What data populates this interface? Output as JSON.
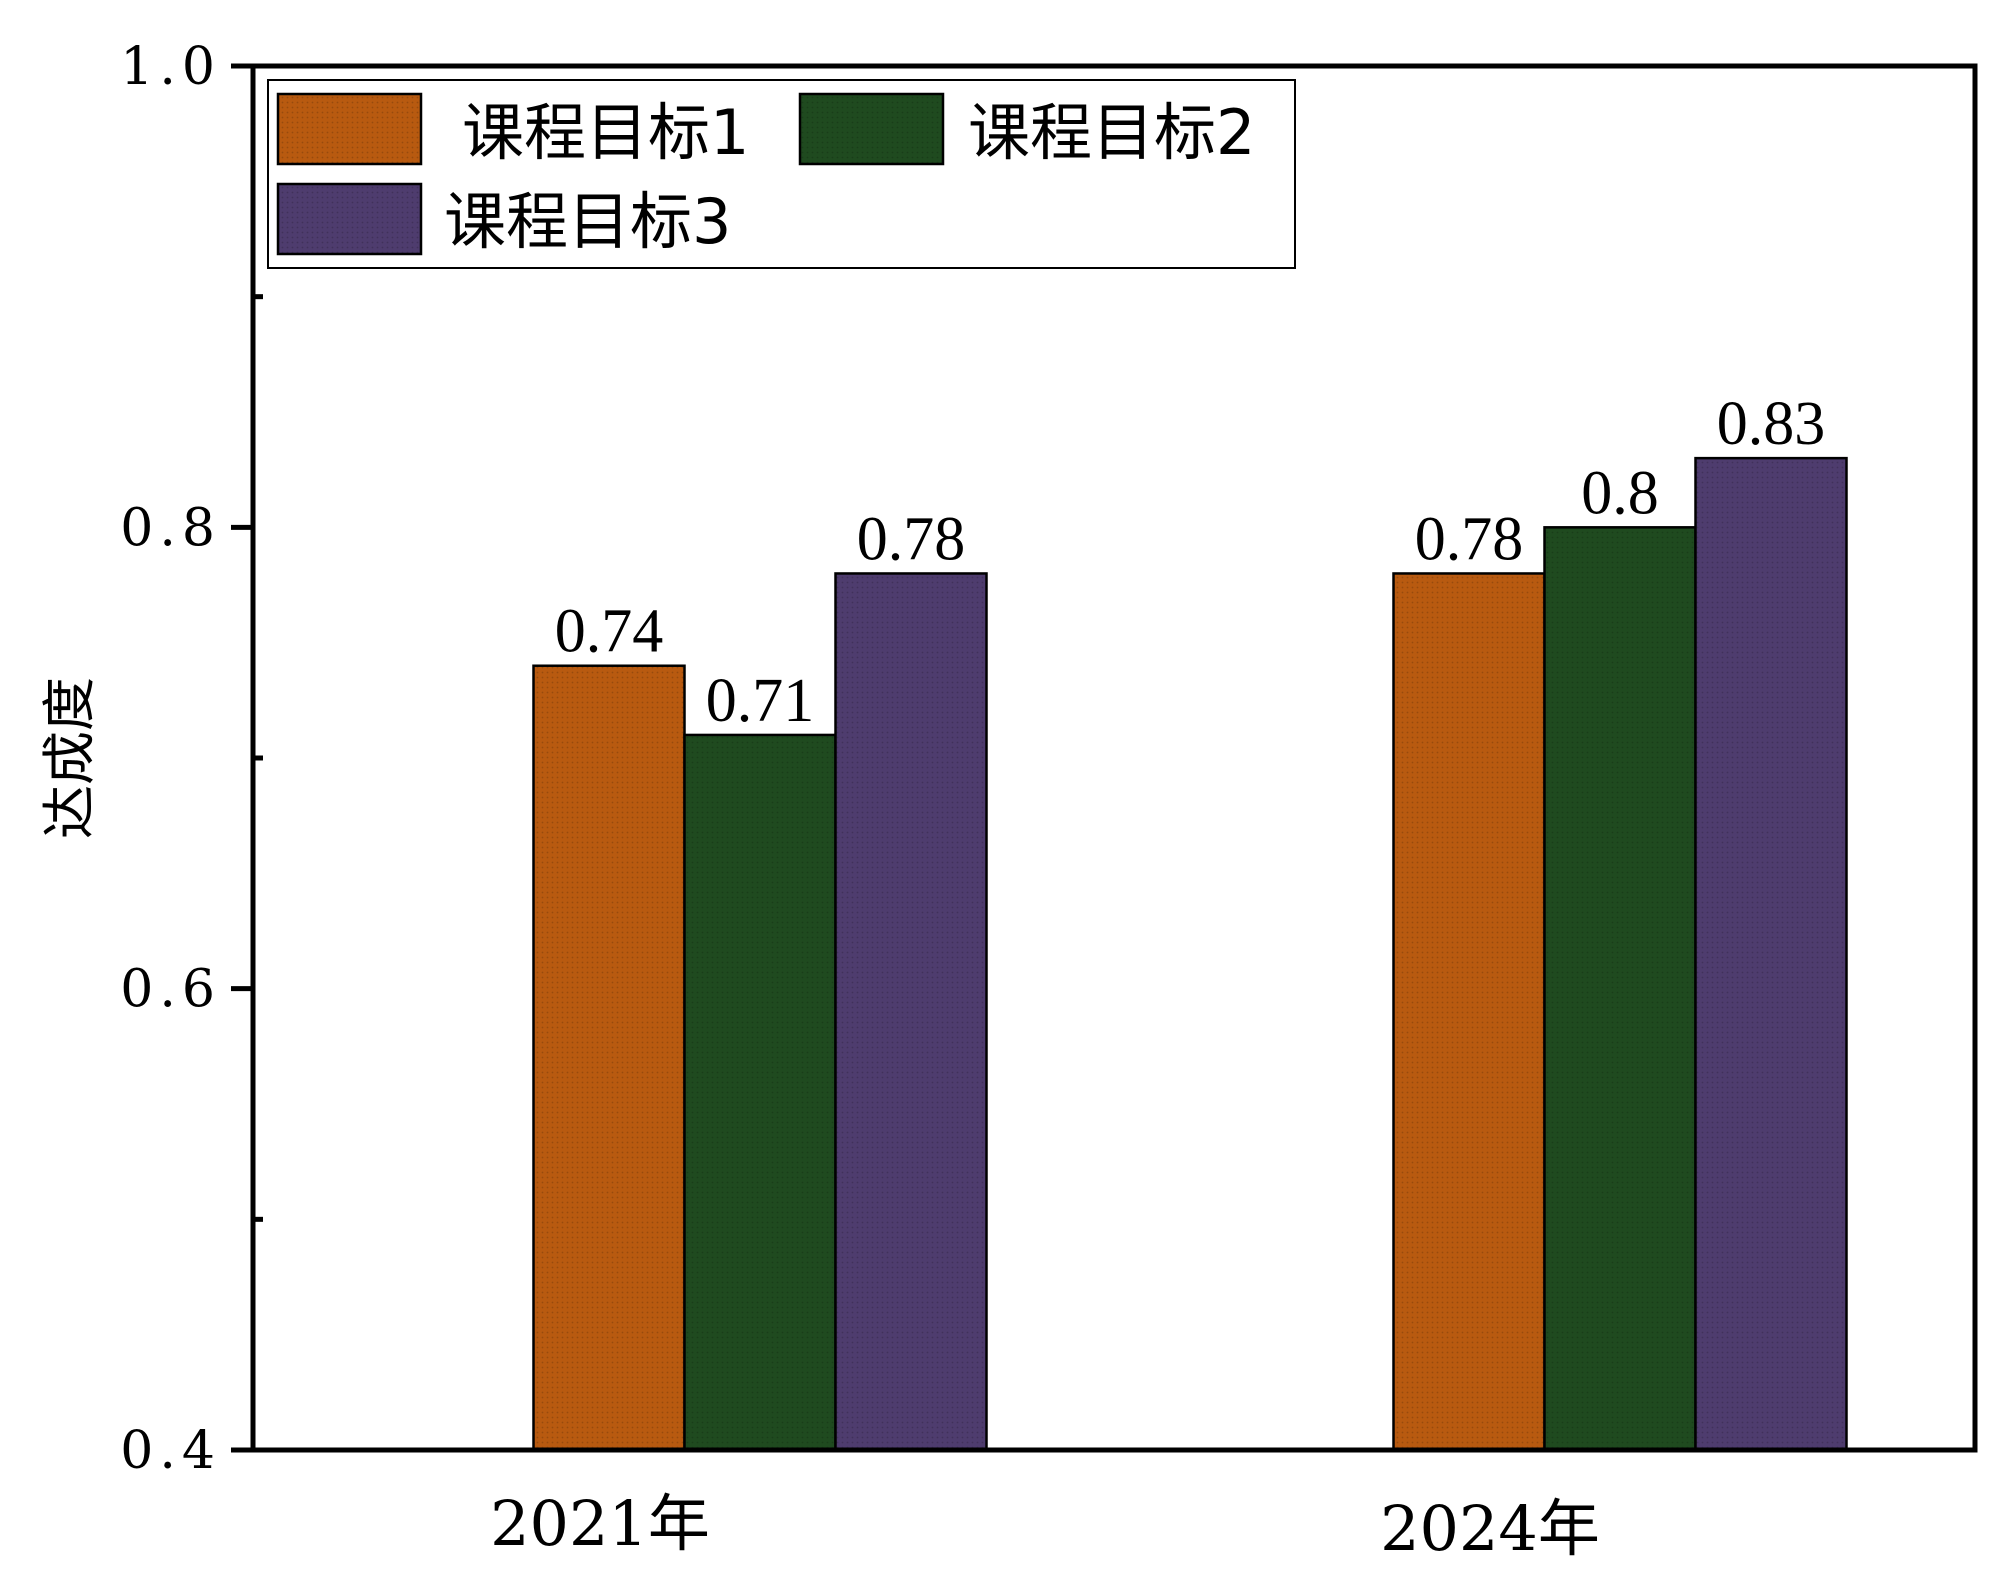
{
  "chart_data": {
    "type": "bar",
    "title": "",
    "xlabel": "",
    "ylabel": "达成度",
    "ylim": [
      0.4,
      1.0
    ],
    "yticks": [
      0.4,
      0.6,
      0.8,
      1.0
    ],
    "ytick_labels": [
      "0.4",
      "0.6",
      "0.8",
      "1.0"
    ],
    "categories": [
      "2021年",
      "2024年"
    ],
    "series": [
      {
        "name": "课程目标1",
        "values": [
          0.74,
          0.78
        ],
        "labels": [
          "0.74",
          "0.78"
        ],
        "color": "#b85a10"
      },
      {
        "name": "课程目标2",
        "values": [
          0.71,
          0.8
        ],
        "labels": [
          "0.71",
          "0.8"
        ],
        "color": "#1f4a1f"
      },
      {
        "name": "课程目标3",
        "values": [
          0.78,
          0.83
        ],
        "labels": [
          "0.78",
          "0.83"
        ],
        "color": "#4e3c6e"
      }
    ],
    "legend_position": "top-left",
    "grid": false
  }
}
